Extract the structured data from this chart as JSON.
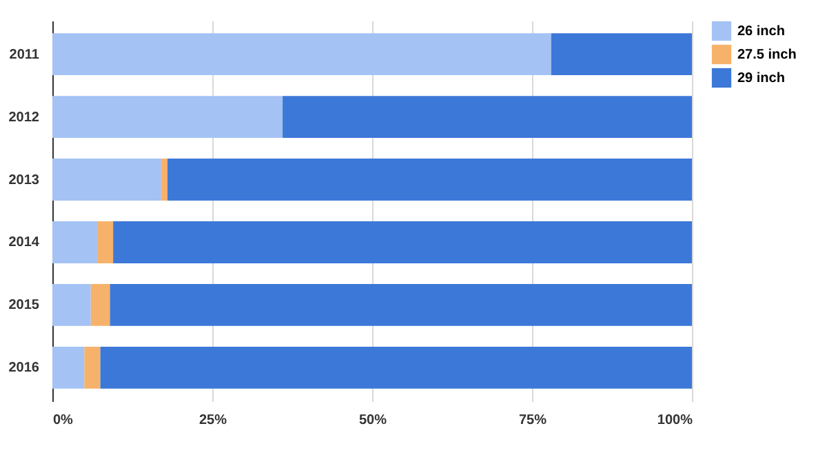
{
  "chart_data": {
    "type": "bar",
    "orientation": "horizontal",
    "stacked": true,
    "categories": [
      "2011",
      "2012",
      "2013",
      "2014",
      "2015",
      "2016"
    ],
    "series": [
      {
        "name": "26 inch",
        "color": "#a4c2f4",
        "values": [
          78,
          36,
          17,
          7,
          6,
          5
        ]
      },
      {
        "name": "27.5 inch",
        "color": "#f6b26b",
        "values": [
          0,
          0,
          1,
          2.5,
          3,
          2.5
        ]
      },
      {
        "name": "29 inch",
        "color": "#3c78d8",
        "values": [
          22,
          64,
          82,
          90.5,
          91,
          92.5
        ]
      }
    ],
    "xlim": [
      0,
      100
    ],
    "xticks": [
      {
        "value": 0,
        "label": "0%"
      },
      {
        "value": 25,
        "label": "25%"
      },
      {
        "value": 50,
        "label": "50%"
      },
      {
        "value": 75,
        "label": "75%"
      },
      {
        "value": 100,
        "label": "100%"
      }
    ],
    "grid": "x",
    "legend": "top right"
  }
}
